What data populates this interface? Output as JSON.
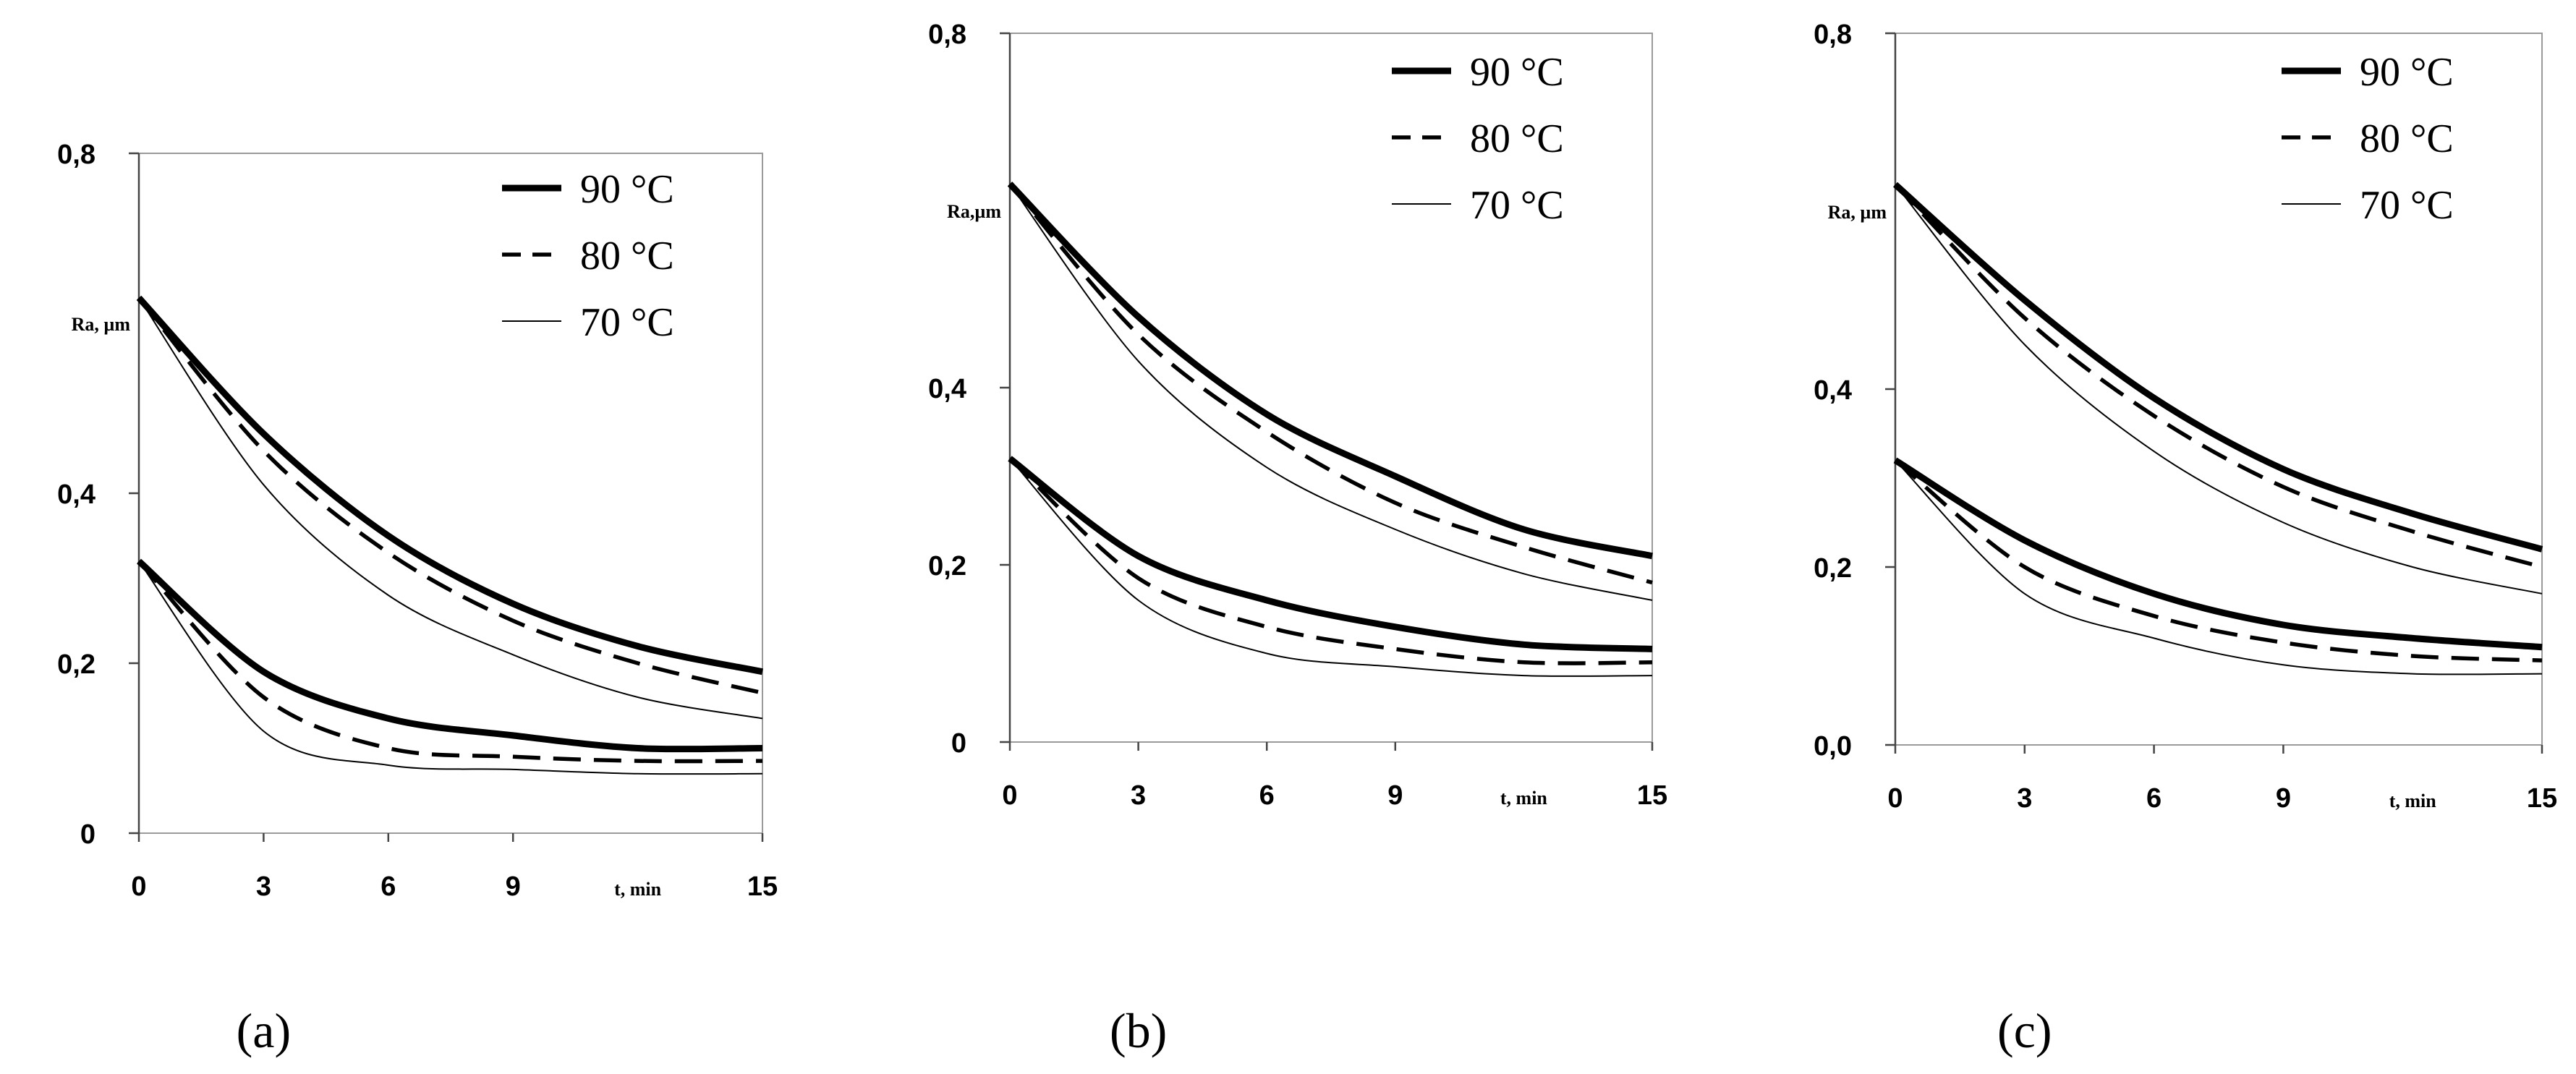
{
  "chart_data": [
    {
      "type": "line",
      "panel_label": "(a)",
      "panel_letter": "a",
      "ylabel": "Ra, µm",
      "xlabel": "t, min",
      "x_ticks": [
        "0",
        "3",
        "6",
        "9",
        "15"
      ],
      "y_ticks": [
        "0",
        "0,2",
        "0,4",
        "0,8"
      ],
      "xlim": [
        0,
        15
      ],
      "ylim": [
        0,
        0.8
      ],
      "legend": [
        "90 °C",
        "80 °C",
        "70 °C"
      ],
      "series": [
        {
          "name": "90 °C",
          "group": "upper",
          "style": "thick",
          "x": [
            0,
            3,
            6,
            9,
            12,
            15
          ],
          "values": [
            0.63,
            0.47,
            0.35,
            0.27,
            0.22,
            0.19
          ]
        },
        {
          "name": "80 °C",
          "group": "upper",
          "style": "dashed",
          "x": [
            0,
            3,
            6,
            9,
            12,
            15
          ],
          "values": [
            0.63,
            0.45,
            0.33,
            0.25,
            0.2,
            0.165
          ]
        },
        {
          "name": "70 °C",
          "group": "upper",
          "style": "thin",
          "x": [
            0,
            3,
            6,
            9,
            12,
            15
          ],
          "values": [
            0.63,
            0.41,
            0.28,
            0.21,
            0.16,
            0.135
          ]
        },
        {
          "name": "90 °C",
          "group": "lower",
          "style": "thick",
          "x": [
            0,
            3,
            6,
            9,
            12,
            15
          ],
          "values": [
            0.32,
            0.19,
            0.135,
            0.115,
            0.1,
            0.1
          ]
        },
        {
          "name": "80 °C",
          "group": "lower",
          "style": "dashed",
          "x": [
            0,
            3,
            6,
            9,
            12,
            15
          ],
          "values": [
            0.32,
            0.16,
            0.1,
            0.09,
            0.085,
            0.085
          ]
        },
        {
          "name": "70 °C",
          "group": "lower",
          "style": "thin",
          "x": [
            0,
            3,
            6,
            9,
            12,
            15
          ],
          "values": [
            0.32,
            0.12,
            0.08,
            0.075,
            0.07,
            0.07
          ]
        }
      ]
    },
    {
      "type": "line",
      "panel_label": "(b)",
      "panel_letter": "b",
      "ylabel": "Ra,µm",
      "xlabel": "t, min",
      "x_ticks": [
        "0",
        "3",
        "6",
        "9",
        "15"
      ],
      "y_ticks": [
        "0",
        "0,2",
        "0,4",
        "0,8"
      ],
      "xlim": [
        0,
        15
      ],
      "ylim": [
        0,
        0.8
      ],
      "legend": [
        "90 °C",
        "80 °C",
        "70 °C"
      ],
      "series": [
        {
          "name": "90 °C",
          "group": "upper",
          "style": "thick",
          "x": [
            0,
            3,
            6,
            9,
            12,
            15
          ],
          "values": [
            0.63,
            0.48,
            0.37,
            0.3,
            0.24,
            0.21
          ]
        },
        {
          "name": "80 °C",
          "group": "upper",
          "style": "dashed",
          "x": [
            0,
            3,
            6,
            9,
            12,
            15
          ],
          "values": [
            0.63,
            0.46,
            0.35,
            0.27,
            0.22,
            0.18
          ]
        },
        {
          "name": "70 °C",
          "group": "upper",
          "style": "thin",
          "x": [
            0,
            3,
            6,
            9,
            12,
            15
          ],
          "values": [
            0.63,
            0.43,
            0.31,
            0.24,
            0.19,
            0.16
          ]
        },
        {
          "name": "90 °C",
          "group": "lower",
          "style": "thick",
          "x": [
            0,
            3,
            6,
            9,
            12,
            15
          ],
          "values": [
            0.32,
            0.21,
            0.16,
            0.13,
            0.11,
            0.105
          ]
        },
        {
          "name": "80 °C",
          "group": "lower",
          "style": "dashed",
          "x": [
            0,
            3,
            6,
            9,
            12,
            15
          ],
          "values": [
            0.32,
            0.185,
            0.13,
            0.105,
            0.09,
            0.09
          ]
        },
        {
          "name": "70 °C",
          "group": "lower",
          "style": "thin",
          "x": [
            0,
            3,
            6,
            9,
            12,
            15
          ],
          "values": [
            0.32,
            0.16,
            0.1,
            0.085,
            0.075,
            0.075
          ]
        }
      ]
    },
    {
      "type": "line",
      "panel_label": "(c)",
      "panel_letter": "c",
      "ylabel": "Ra, µm",
      "xlabel": "t, min",
      "x_ticks": [
        "0",
        "3",
        "6",
        "9",
        "15"
      ],
      "y_ticks": [
        "0,0",
        "0,2",
        "0,4",
        "0,8"
      ],
      "xlim": [
        0,
        15
      ],
      "ylim": [
        0,
        0.8
      ],
      "legend": [
        "90 °C",
        "80 °C",
        "70 °C"
      ],
      "series": [
        {
          "name": "90 °C",
          "group": "upper",
          "style": "thick",
          "x": [
            0,
            3,
            6,
            9,
            12,
            15
          ],
          "values": [
            0.63,
            0.5,
            0.39,
            0.31,
            0.26,
            0.22
          ]
        },
        {
          "name": "80 °C",
          "group": "upper",
          "style": "dashed",
          "x": [
            0,
            3,
            6,
            9,
            12,
            15
          ],
          "values": [
            0.63,
            0.48,
            0.37,
            0.29,
            0.24,
            0.2
          ]
        },
        {
          "name": "70 °C",
          "group": "upper",
          "style": "thin",
          "x": [
            0,
            3,
            6,
            9,
            12,
            15
          ],
          "values": [
            0.63,
            0.45,
            0.33,
            0.25,
            0.2,
            0.17
          ]
        },
        {
          "name": "90 °C",
          "group": "lower",
          "style": "thick",
          "x": [
            0,
            3,
            6,
            9,
            12,
            15
          ],
          "values": [
            0.32,
            0.23,
            0.17,
            0.135,
            0.12,
            0.11
          ]
        },
        {
          "name": "80 °C",
          "group": "lower",
          "style": "dashed",
          "x": [
            0,
            3,
            6,
            9,
            12,
            15
          ],
          "values": [
            0.32,
            0.2,
            0.145,
            0.115,
            0.1,
            0.095
          ]
        },
        {
          "name": "70 °C",
          "group": "lower",
          "style": "thin",
          "x": [
            0,
            3,
            6,
            9,
            12,
            15
          ],
          "values": [
            0.32,
            0.17,
            0.12,
            0.09,
            0.08,
            0.08
          ]
        }
      ]
    }
  ]
}
